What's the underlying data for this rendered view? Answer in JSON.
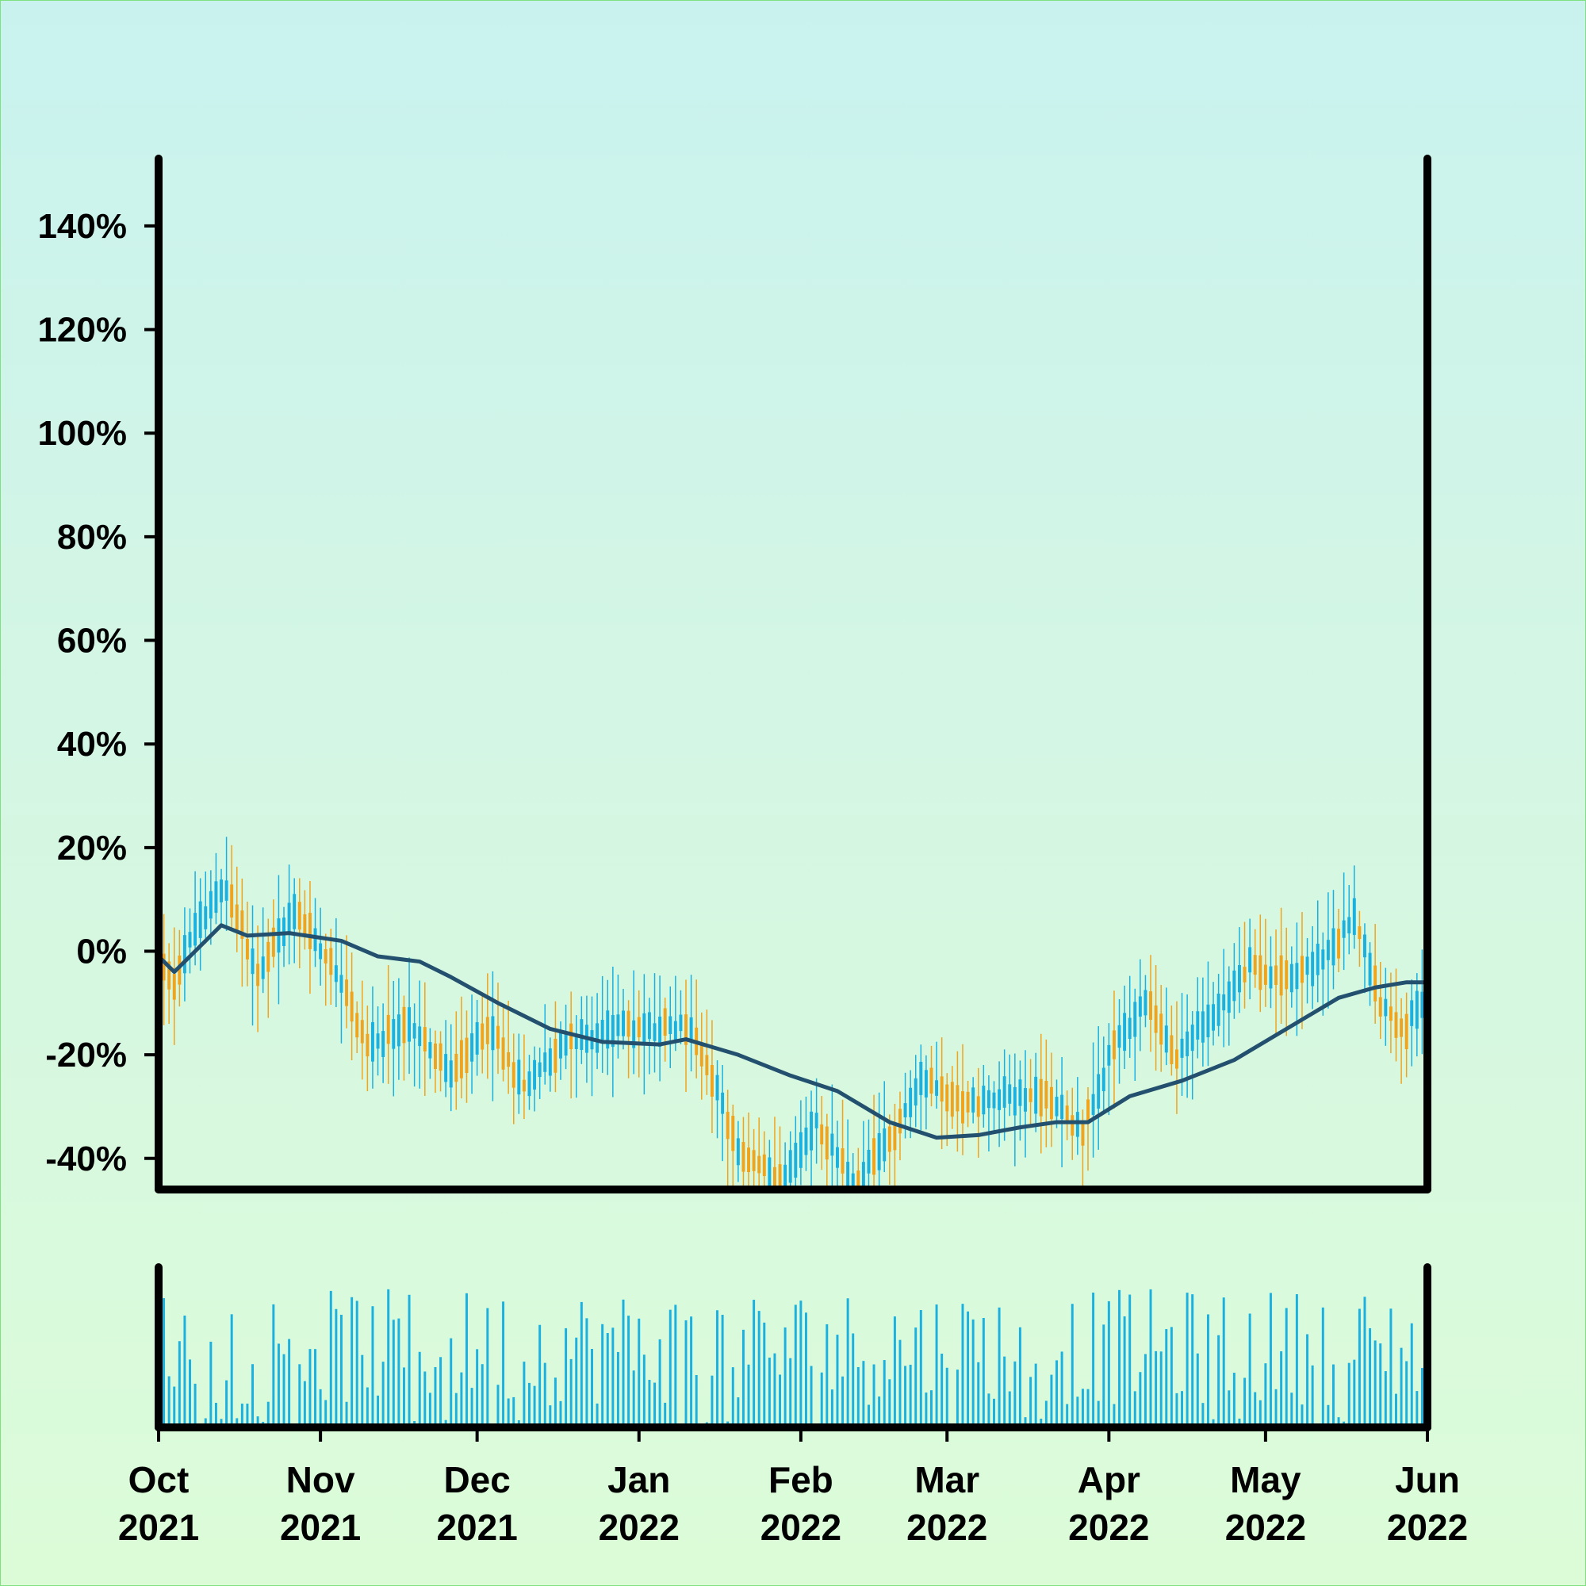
{
  "chart_data": {
    "type": "candlestick",
    "title": "",
    "xlabel": "",
    "ylabel": "",
    "y_axis": {
      "min": -46,
      "max": 153,
      "ticks": [
        -40,
        -20,
        0,
        20,
        40,
        60,
        80,
        100,
        120,
        140
      ],
      "tick_labels": [
        "-40%",
        "-20%",
        "0%",
        "20%",
        "40%",
        "60%",
        "80%",
        "100%",
        "120%",
        "140%"
      ],
      "format": "percent"
    },
    "x_axis": {
      "range": [
        "2021-10-01",
        "2022-06-01"
      ],
      "ticks": [
        {
          "date": "2021-10-01",
          "month": "Oct",
          "year": "2021"
        },
        {
          "date": "2021-11-01",
          "month": "Nov",
          "year": "2021"
        },
        {
          "date": "2021-12-01",
          "month": "Dec",
          "year": "2021"
        },
        {
          "date": "2022-01-01",
          "month": "Jan",
          "year": "2022"
        },
        {
          "date": "2022-02-01",
          "month": "Feb",
          "year": "2022"
        },
        {
          "date": "2022-03-01",
          "month": "Mar",
          "year": "2022"
        },
        {
          "date": "2022-04-01",
          "month": "Apr",
          "year": "2022"
        },
        {
          "date": "2022-05-01",
          "month": "May",
          "year": "2022"
        },
        {
          "date": "2022-06-01",
          "month": "Jun",
          "year": "2022"
        }
      ]
    },
    "price_trend": [
      [
        "2021-10-01",
        0
      ],
      [
        "2021-10-04",
        -6
      ],
      [
        "2021-10-08",
        5
      ],
      [
        "2021-10-14",
        12
      ],
      [
        "2021-10-20",
        -4
      ],
      [
        "2021-10-27",
        8
      ],
      [
        "2021-11-04",
        -4
      ],
      [
        "2021-11-10",
        -18
      ],
      [
        "2021-11-18",
        -14
      ],
      [
        "2021-11-26",
        -24
      ],
      [
        "2021-12-03",
        -14
      ],
      [
        "2021-12-10",
        -26
      ],
      [
        "2021-12-18",
        -18
      ],
      [
        "2021-12-27",
        -15
      ],
      [
        "2022-01-05",
        -15
      ],
      [
        "2022-01-11",
        -14
      ],
      [
        "2022-01-20",
        -38
      ],
      [
        "2022-01-28",
        -45
      ],
      [
        "2022-02-04",
        -33
      ],
      [
        "2022-02-11",
        -45
      ],
      [
        "2022-02-19",
        -35
      ],
      [
        "2022-02-24",
        -25
      ],
      [
        "2022-03-04",
        -30
      ],
      [
        "2022-03-12",
        -28
      ],
      [
        "2022-03-20",
        -28
      ],
      [
        "2022-03-27",
        -35
      ],
      [
        "2022-04-02",
        -18
      ],
      [
        "2022-04-08",
        -10
      ],
      [
        "2022-04-14",
        -20
      ],
      [
        "2022-04-21",
        -12
      ],
      [
        "2022-04-28",
        -3
      ],
      [
        "2022-05-05",
        -5
      ],
      [
        "2022-05-12",
        -2
      ],
      [
        "2022-05-18",
        7
      ],
      [
        "2022-05-23",
        -10
      ],
      [
        "2022-05-28",
        -15
      ],
      [
        "2022-06-01",
        -8
      ]
    ],
    "moving_average": [
      [
        "2021-10-01",
        -1
      ],
      [
        "2021-10-04",
        -4
      ],
      [
        "2021-10-08",
        0
      ],
      [
        "2021-10-13",
        5
      ],
      [
        "2021-10-18",
        3
      ],
      [
        "2021-10-26",
        3.5
      ],
      [
        "2021-11-05",
        2
      ],
      [
        "2021-11-12",
        -1
      ],
      [
        "2021-11-20",
        -2
      ],
      [
        "2021-11-26",
        -5
      ],
      [
        "2021-12-05",
        -10
      ],
      [
        "2021-12-15",
        -15
      ],
      [
        "2021-12-25",
        -17.5
      ],
      [
        "2022-01-05",
        -18
      ],
      [
        "2022-01-10",
        -17
      ],
      [
        "2022-01-20",
        -20
      ],
      [
        "2022-01-30",
        -24
      ],
      [
        "2022-02-08",
        -27
      ],
      [
        "2022-02-18",
        -33
      ],
      [
        "2022-02-27",
        -36
      ],
      [
        "2022-03-07",
        -35.5
      ],
      [
        "2022-03-15",
        -34
      ],
      [
        "2022-03-22",
        -33
      ],
      [
        "2022-03-28",
        -33
      ],
      [
        "2022-04-05",
        -28
      ],
      [
        "2022-04-15",
        -25
      ],
      [
        "2022-04-25",
        -21
      ],
      [
        "2022-05-05",
        -15
      ],
      [
        "2022-05-15",
        -9
      ],
      [
        "2022-05-22",
        -7
      ],
      [
        "2022-05-28",
        -6
      ],
      [
        "2022-06-01",
        -6
      ]
    ],
    "series": [
      {
        "color": "#1ab1e0"
      },
      {
        "color": "#f0a41e"
      },
      {
        "color": "#23506e"
      }
    ],
    "volume": {
      "color": "#1ab1e0",
      "unlabeled": true
    },
    "grid": false,
    "legend": "none"
  }
}
